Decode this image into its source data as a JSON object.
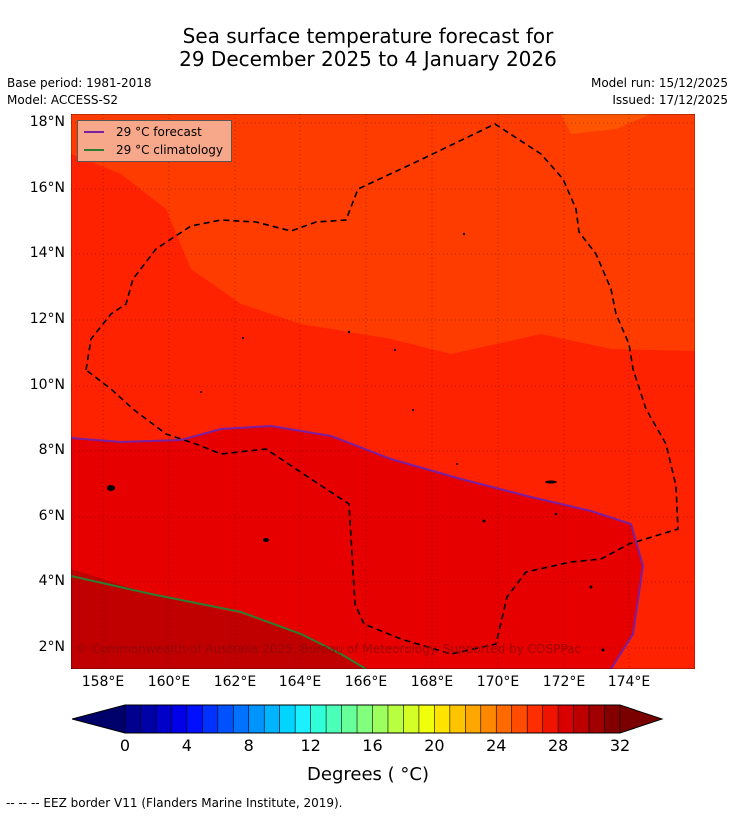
{
  "title_line1": "Sea surface temperature forecast for",
  "title_line2": "29 December 2025 to 4 January 2026",
  "base_period": "Base period: 1981-2018",
  "model": "Model: ACCESS-S2",
  "model_run": "Model run: 15/12/2025",
  "issued": "Issued: 17/12/2025",
  "copyright": "© Commonwealth of Australia 2025, Bureau of Meteorology. Supported by COSPPac",
  "footnote": "--  --  -- EEZ border V11 (Flanders Marine Institute, 2019).",
  "legend": {
    "forecast_label": "29 °C  forecast",
    "climatology_label": "29 °C  climatology",
    "forecast_color": "#7b1fa2",
    "climatology_color": "#2e7d32"
  },
  "chart_data": {
    "type": "heatmap",
    "x_ticks": [
      "158°E",
      "160°E",
      "162°E",
      "164°E",
      "166°E",
      "168°E",
      "170°E",
      "172°E",
      "174°E"
    ],
    "y_ticks": [
      "18°N",
      "16°N",
      "14°N",
      "12°N",
      "10°N",
      "8°N",
      "6°N",
      "4°N",
      "2°N"
    ],
    "xlim": [
      157,
      176
    ],
    "ylim": [
      1.4,
      18.3
    ],
    "grid": true,
    "colorbar": {
      "label": "Degrees ( °C)",
      "ticks": [
        "0",
        "4",
        "8",
        "12",
        "16",
        "20",
        "24",
        "28",
        "32"
      ],
      "colors": [
        "#00008f",
        "#0000a8",
        "#0000c8",
        "#0000e6",
        "#0010ff",
        "#0032ff",
        "#0052ff",
        "#0072ff",
        "#0094ff",
        "#00b4ff",
        "#00d4ff",
        "#1af0ff",
        "#30ffd8",
        "#4cffb8",
        "#66ff9a",
        "#82ff7c",
        "#9cff5e",
        "#b8ff42",
        "#d4ff26",
        "#f0ff0a",
        "#ffe400",
        "#ffc400",
        "#ffa600",
        "#ff8800",
        "#ff6a00",
        "#ff4c00",
        "#ff2e00",
        "#f01400",
        "#d80000",
        "#bc0000",
        "#a00000",
        "#840000"
      ],
      "under_color": "#00006b",
      "over_color": "#7a0000"
    },
    "field_colors": {
      "above_29": "#e60000",
      "band_28_29": "#ff2200",
      "band_27_28": "#ff3c00",
      "band_26_27": "#ff5500",
      "climatology_region": "#c00000"
    }
  }
}
